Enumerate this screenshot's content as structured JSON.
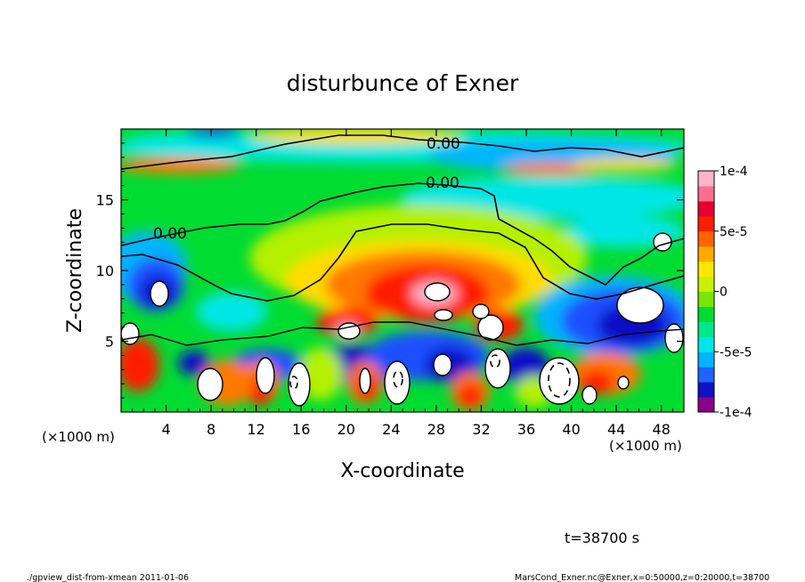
{
  "chart_data": {
    "type": "heatmap",
    "title": "disturbunce of Exner",
    "xlabel": "X-coordinate",
    "ylabel": "Z-coordinate",
    "x_unit_left": "(×1000 m)",
    "x_unit_right": "(×1000 m)",
    "xlim": [
      0,
      50
    ],
    "ylim": [
      0,
      20
    ],
    "x_ticks": [
      4,
      8,
      12,
      16,
      20,
      24,
      28,
      32,
      36,
      40,
      44,
      48
    ],
    "y_ticks": [
      5,
      10,
      15
    ],
    "colorbar": {
      "range": [
        -0.0001,
        0.0001
      ],
      "ticks": [
        "1e-4",
        "5e-5",
        "0",
        "-5e-5",
        "-1e-4"
      ],
      "colors": [
        "#8b008b",
        "#1010c8",
        "#1e64ff",
        "#00b4ff",
        "#00e6e6",
        "#00e68c",
        "#00dc32",
        "#78e600",
        "#c8f000",
        "#ffe600",
        "#ffaa00",
        "#ff6400",
        "#ff1e00",
        "#e60032",
        "#ff6e8c",
        "#ffb4c8"
      ]
    },
    "contour_labels": [
      "0.00",
      "0.00",
      "0.00"
    ],
    "time_label": "t=38700 s",
    "footer_left": "./gpview_dist-from-xmean   2011-01-06",
    "footer_right": "MarsCond_Exner.nc@Exner,x=0:50000,z=0:20000,t=38700"
  }
}
